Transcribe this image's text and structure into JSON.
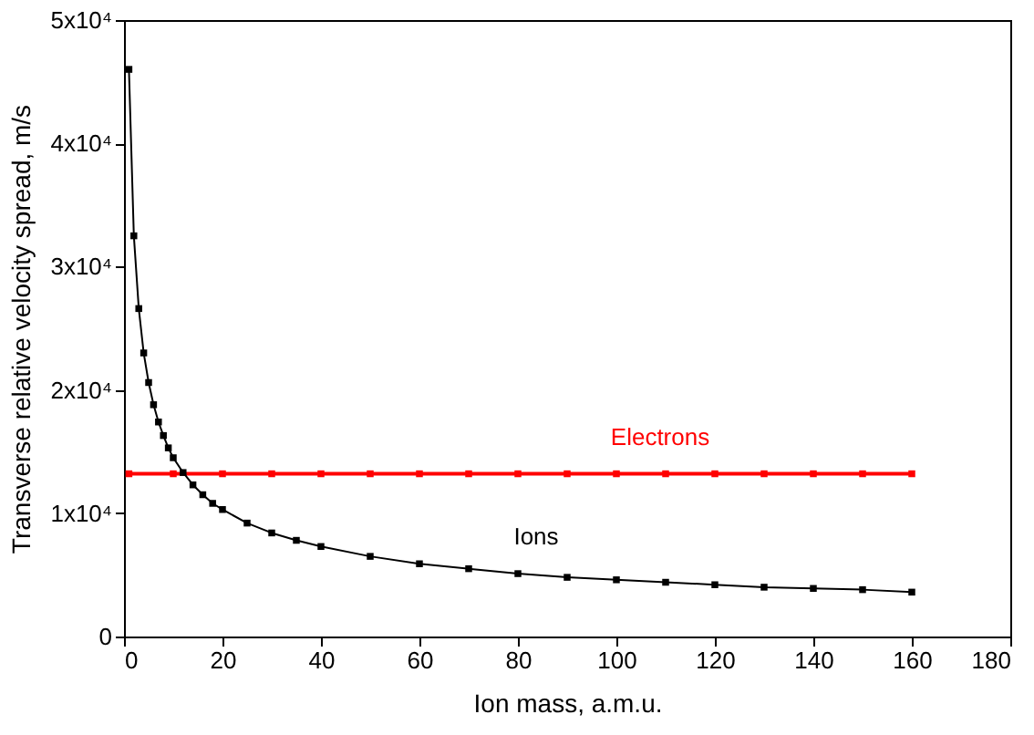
{
  "chart_data": {
    "type": "line",
    "xlabel": "Ion mass, a.m.u.",
    "ylabel": "Transverse relative velocity spread, m/s",
    "series": [
      {
        "name": "Electrons",
        "color": "#ff0000",
        "x": [
          1,
          10,
          20,
          30,
          40,
          50,
          60,
          70,
          80,
          90,
          100,
          110,
          120,
          130,
          140,
          150,
          160
        ],
        "values": [
          13200,
          13200,
          13200,
          13200,
          13200,
          13200,
          13200,
          13200,
          13200,
          13200,
          13200,
          13200,
          13200,
          13200,
          13200,
          13200,
          13200
        ]
      },
      {
        "name": "Ions",
        "color": "#000000",
        "x": [
          1,
          2,
          3,
          4,
          5,
          6,
          7,
          8,
          9,
          10,
          12,
          14,
          16,
          18,
          20,
          25,
          30,
          35,
          40,
          50,
          60,
          70,
          80,
          90,
          100,
          110,
          120,
          130,
          140,
          150,
          160
        ],
        "values": [
          46000,
          32500,
          26600,
          23000,
          20600,
          18800,
          17400,
          16300,
          15300,
          14500,
          13300,
          12300,
          11500,
          10800,
          10300,
          9200,
          8400,
          7800,
          7300,
          6500,
          5900,
          5500,
          5100,
          4800,
          4600,
          4400,
          4200,
          4000,
          3900,
          3800,
          3600
        ]
      }
    ],
    "xlim": [
      0,
      180
    ],
    "xticks": [
      0,
      20,
      40,
      60,
      80,
      100,
      120,
      140,
      160,
      180
    ],
    "ylim": [
      0,
      50000
    ],
    "yticks": [
      0,
      {
        "value": 10000,
        "label": "1x10⁴"
      },
      {
        "value": 20000,
        "label": "2x10⁴"
      },
      {
        "value": 30000,
        "label": "3x10⁴"
      },
      {
        "value": 40000,
        "label": "4x10⁴"
      },
      {
        "value": 50000,
        "label": "5x10⁴"
      }
    ],
    "grid": false,
    "marker": "square",
    "line_style": "solid"
  }
}
